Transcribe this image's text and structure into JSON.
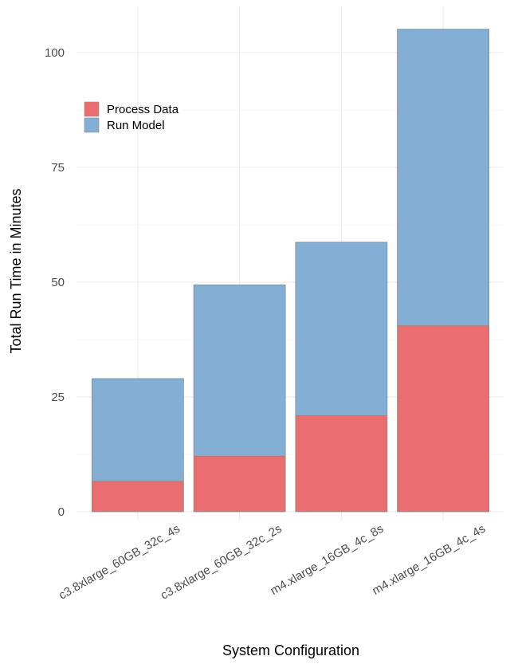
{
  "chart_data": {
    "type": "bar",
    "stacked": true,
    "title": "",
    "xlabel": "System Configuration",
    "ylabel": "Total Run Time in Minutes",
    "categories": [
      "c3.8xlarge_60GB_32c_4s",
      "c3.8xlarge_60GB_32c_2s",
      "m4.xlarge_16GB_4c_8s",
      "m4.xlarge_16GB_4c_4s"
    ],
    "series": [
      {
        "name": "Process Data",
        "color": "#e86264",
        "values": [
          6.6,
          12.1,
          20.9,
          40.5
        ]
      },
      {
        "name": "Run Model",
        "color": "#7aa8d0",
        "values": [
          22.4,
          37.3,
          37.8,
          64.6
        ]
      }
    ],
    "yticks": [
      0,
      25,
      50,
      75,
      100
    ],
    "ylim": [
      -2,
      110
    ],
    "grid": true,
    "legend_position": "top-left"
  }
}
